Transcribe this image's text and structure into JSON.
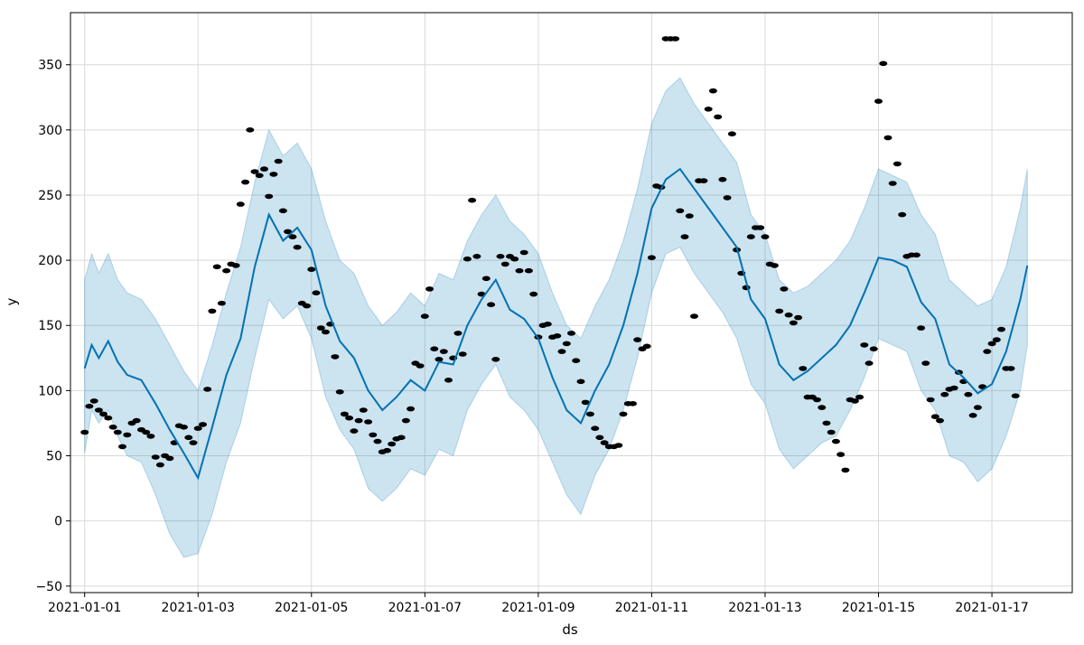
{
  "chart_data": {
    "type": "line",
    "title": "",
    "xlabel": "ds",
    "ylabel": "y",
    "xlim": [
      "2020-12-31T18:00",
      "2021-01-18T10:00"
    ],
    "ylim": [
      -55,
      390
    ],
    "grid": true,
    "x_tick_labels": [
      "2021-01-01",
      "2021-01-03",
      "2021-01-05",
      "2021-01-07",
      "2021-01-09",
      "2021-01-11",
      "2021-01-13",
      "2021-01-15",
      "2021-01-17"
    ],
    "y_tick_values": [
      -50,
      0,
      50,
      100,
      150,
      200,
      250,
      300,
      350
    ],
    "colors": {
      "forecast_line": "#0072b2",
      "uncertainty_band": "#0072b2",
      "observed_points": "#000000",
      "grid": "#d9d9d9"
    },
    "forecast": {
      "name": "yhat",
      "x": [
        "2021-01-01T00:00",
        "2021-01-01T03:00",
        "2021-01-01T06:00",
        "2021-01-01T10:00",
        "2021-01-01T14:00",
        "2021-01-01T18:00",
        "2021-01-02T00:00",
        "2021-01-02T06:00",
        "2021-01-02T12:00",
        "2021-01-02T18:00",
        "2021-01-03T00:00",
        "2021-01-03T06:00",
        "2021-01-03T12:00",
        "2021-01-03T18:00",
        "2021-01-04T00:00",
        "2021-01-04T06:00",
        "2021-01-04T12:00",
        "2021-01-04T18:00",
        "2021-01-05T00:00",
        "2021-01-05T06:00",
        "2021-01-05T12:00",
        "2021-01-05T18:00",
        "2021-01-06T00:00",
        "2021-01-06T06:00",
        "2021-01-06T12:00",
        "2021-01-06T18:00",
        "2021-01-07T00:00",
        "2021-01-07T06:00",
        "2021-01-07T12:00",
        "2021-01-07T18:00",
        "2021-01-08T00:00",
        "2021-01-08T06:00",
        "2021-01-08T12:00",
        "2021-01-08T18:00",
        "2021-01-09T00:00",
        "2021-01-09T06:00",
        "2021-01-09T12:00",
        "2021-01-09T18:00",
        "2021-01-10T00:00",
        "2021-01-10T06:00",
        "2021-01-10T12:00",
        "2021-01-10T18:00",
        "2021-01-11T00:00",
        "2021-01-11T06:00",
        "2021-01-11T12:00",
        "2021-01-11T18:00",
        "2021-01-12T00:00",
        "2021-01-12T06:00",
        "2021-01-12T12:00",
        "2021-01-12T18:00",
        "2021-01-13T00:00",
        "2021-01-13T06:00",
        "2021-01-13T12:00",
        "2021-01-13T18:00",
        "2021-01-14T00:00",
        "2021-01-14T06:00",
        "2021-01-14T12:00",
        "2021-01-14T18:00",
        "2021-01-15T00:00",
        "2021-01-15T06:00",
        "2021-01-15T12:00",
        "2021-01-15T18:00",
        "2021-01-16T00:00",
        "2021-01-16T06:00",
        "2021-01-16T12:00",
        "2021-01-16T18:00",
        "2021-01-17T00:00",
        "2021-01-17T06:00",
        "2021-01-17T12:00",
        "2021-01-17T15:00"
      ],
      "y": [
        117,
        135,
        125,
        138,
        122,
        112,
        108,
        90,
        70,
        52,
        33,
        72,
        112,
        140,
        195,
        235,
        215,
        225,
        208,
        165,
        138,
        125,
        100,
        85,
        95,
        108,
        100,
        122,
        120,
        150,
        170,
        185,
        162,
        155,
        140,
        110,
        85,
        75,
        100,
        120,
        150,
        190,
        240,
        262,
        270,
        255,
        240,
        225,
        210,
        170,
        155,
        120,
        108,
        115,
        125,
        135,
        150,
        175,
        202,
        200,
        195,
        168,
        155,
        120,
        110,
        98,
        105,
        130,
        170,
        196
      ],
      "lower": [
        52,
        85,
        75,
        85,
        65,
        50,
        45,
        20,
        -10,
        -28,
        -25,
        5,
        45,
        75,
        125,
        170,
        155,
        165,
        140,
        95,
        70,
        55,
        25,
        15,
        25,
        40,
        35,
        55,
        50,
        85,
        105,
        120,
        95,
        85,
        70,
        45,
        20,
        5,
        35,
        55,
        85,
        125,
        175,
        205,
        210,
        190,
        175,
        160,
        140,
        105,
        90,
        55,
        40,
        50,
        60,
        65,
        85,
        110,
        140,
        135,
        130,
        100,
        85,
        50,
        45,
        30,
        40,
        65,
        100,
        135
      ],
      "upper": [
        185,
        205,
        190,
        205,
        185,
        175,
        170,
        155,
        135,
        115,
        100,
        135,
        175,
        210,
        260,
        300,
        280,
        290,
        270,
        230,
        200,
        190,
        165,
        150,
        160,
        175,
        165,
        190,
        185,
        215,
        235,
        250,
        230,
        220,
        205,
        175,
        150,
        140,
        165,
        185,
        215,
        255,
        305,
        330,
        340,
        320,
        305,
        290,
        275,
        235,
        220,
        185,
        175,
        180,
        190,
        200,
        215,
        240,
        270,
        265,
        260,
        235,
        220,
        185,
        175,
        165,
        170,
        195,
        240,
        270
      ]
    },
    "observed": {
      "x": [
        "2021-01-01T00:00",
        "2021-01-01T02:00",
        "2021-01-01T04:00",
        "2021-01-01T06:00",
        "2021-01-01T08:00",
        "2021-01-01T10:00",
        "2021-01-01T12:00",
        "2021-01-01T14:00",
        "2021-01-01T16:00",
        "2021-01-01T18:00",
        "2021-01-01T20:00",
        "2021-01-01T22:00",
        "2021-01-02T00:00",
        "2021-01-02T02:00",
        "2021-01-02T04:00",
        "2021-01-02T06:00",
        "2021-01-02T08:00",
        "2021-01-02T10:00",
        "2021-01-02T12:00",
        "2021-01-02T14:00",
        "2021-01-02T16:00",
        "2021-01-02T18:00",
        "2021-01-02T20:00",
        "2021-01-02T22:00",
        "2021-01-03T00:00",
        "2021-01-03T02:00",
        "2021-01-03T04:00",
        "2021-01-03T06:00",
        "2021-01-03T08:00",
        "2021-01-03T10:00",
        "2021-01-03T12:00",
        "2021-01-03T14:00",
        "2021-01-03T16:00",
        "2021-01-03T18:00",
        "2021-01-03T20:00",
        "2021-01-03T22:00",
        "2021-01-04T00:00",
        "2021-01-04T02:00",
        "2021-01-04T04:00",
        "2021-01-04T06:00",
        "2021-01-04T08:00",
        "2021-01-04T10:00",
        "2021-01-04T12:00",
        "2021-01-04T14:00",
        "2021-01-04T16:00",
        "2021-01-04T18:00",
        "2021-01-04T20:00",
        "2021-01-04T22:00",
        "2021-01-05T00:00",
        "2021-01-05T02:00",
        "2021-01-05T04:00",
        "2021-01-05T06:00",
        "2021-01-05T08:00",
        "2021-01-05T10:00",
        "2021-01-05T12:00",
        "2021-01-05T14:00",
        "2021-01-05T16:00",
        "2021-01-05T18:00",
        "2021-01-05T20:00",
        "2021-01-05T22:00",
        "2021-01-06T00:00",
        "2021-01-06T02:00",
        "2021-01-06T04:00",
        "2021-01-06T06:00",
        "2021-01-06T08:00",
        "2021-01-06T10:00",
        "2021-01-06T12:00",
        "2021-01-06T14:00",
        "2021-01-06T16:00",
        "2021-01-06T18:00",
        "2021-01-06T20:00",
        "2021-01-06T22:00",
        "2021-01-07T00:00",
        "2021-01-07T02:00",
        "2021-01-07T04:00",
        "2021-01-07T06:00",
        "2021-01-07T08:00",
        "2021-01-07T10:00",
        "2021-01-07T12:00",
        "2021-01-07T14:00",
        "2021-01-07T16:00",
        "2021-01-07T18:00",
        "2021-01-07T20:00",
        "2021-01-07T22:00",
        "2021-01-08T00:00",
        "2021-01-08T02:00",
        "2021-01-08T04:00",
        "2021-01-08T06:00",
        "2021-01-08T08:00",
        "2021-01-08T10:00",
        "2021-01-08T12:00",
        "2021-01-08T14:00",
        "2021-01-08T16:00",
        "2021-01-08T18:00",
        "2021-01-08T20:00",
        "2021-01-08T22:00",
        "2021-01-09T00:00",
        "2021-01-09T02:00",
        "2021-01-09T04:00",
        "2021-01-09T06:00",
        "2021-01-09T08:00",
        "2021-01-09T10:00",
        "2021-01-09T12:00",
        "2021-01-09T14:00",
        "2021-01-09T16:00",
        "2021-01-09T18:00",
        "2021-01-09T20:00",
        "2021-01-09T22:00",
        "2021-01-10T00:00",
        "2021-01-10T02:00",
        "2021-01-10T04:00",
        "2021-01-10T06:00",
        "2021-01-10T08:00",
        "2021-01-10T10:00",
        "2021-01-10T12:00",
        "2021-01-10T14:00",
        "2021-01-10T16:00",
        "2021-01-10T18:00",
        "2021-01-10T20:00",
        "2021-01-10T22:00",
        "2021-01-11T00:00",
        "2021-01-11T02:00",
        "2021-01-11T04:00",
        "2021-01-11T06:00",
        "2021-01-11T08:00",
        "2021-01-11T10:00",
        "2021-01-11T12:00",
        "2021-01-11T14:00",
        "2021-01-11T16:00",
        "2021-01-11T18:00",
        "2021-01-11T20:00",
        "2021-01-11T22:00",
        "2021-01-12T00:00",
        "2021-01-12T02:00",
        "2021-01-12T04:00",
        "2021-01-12T06:00",
        "2021-01-12T08:00",
        "2021-01-12T10:00",
        "2021-01-12T12:00",
        "2021-01-12T14:00",
        "2021-01-12T16:00",
        "2021-01-12T18:00",
        "2021-01-12T20:00",
        "2021-01-12T22:00",
        "2021-01-13T00:00",
        "2021-01-13T02:00",
        "2021-01-13T04:00",
        "2021-01-13T06:00",
        "2021-01-13T08:00",
        "2021-01-13T10:00",
        "2021-01-13T12:00",
        "2021-01-13T14:00",
        "2021-01-13T16:00",
        "2021-01-13T18:00",
        "2021-01-13T20:00",
        "2021-01-13T22:00",
        "2021-01-14T00:00",
        "2021-01-14T02:00",
        "2021-01-14T04:00",
        "2021-01-14T06:00",
        "2021-01-14T08:00",
        "2021-01-14T10:00",
        "2021-01-14T12:00",
        "2021-01-14T14:00",
        "2021-01-14T16:00",
        "2021-01-14T18:00",
        "2021-01-14T20:00",
        "2021-01-14T22:00",
        "2021-01-15T00:00",
        "2021-01-15T02:00",
        "2021-01-15T04:00",
        "2021-01-15T06:00",
        "2021-01-15T08:00",
        "2021-01-15T10:00",
        "2021-01-15T12:00",
        "2021-01-15T14:00",
        "2021-01-15T16:00",
        "2021-01-15T18:00",
        "2021-01-15T20:00",
        "2021-01-15T22:00",
        "2021-01-16T00:00",
        "2021-01-16T02:00",
        "2021-01-16T04:00",
        "2021-01-16T06:00",
        "2021-01-16T08:00",
        "2021-01-16T10:00",
        "2021-01-16T12:00",
        "2021-01-16T14:00",
        "2021-01-16T16:00",
        "2021-01-16T18:00",
        "2021-01-16T20:00",
        "2021-01-16T22:00",
        "2021-01-17T00:00",
        "2021-01-17T02:00",
        "2021-01-17T04:00",
        "2021-01-17T06:00",
        "2021-01-17T08:00",
        "2021-01-17T10:00"
      ],
      "y": [
        68,
        88,
        92,
        85,
        82,
        79,
        72,
        68,
        57,
        66,
        75,
        77,
        70,
        68,
        65,
        49,
        43,
        50,
        48,
        60,
        73,
        72,
        64,
        60,
        71,
        74,
        101,
        161,
        195,
        167,
        192,
        197,
        196,
        243,
        260,
        300,
        268,
        265,
        270,
        249,
        266,
        276,
        238,
        222,
        218,
        210,
        167,
        165,
        193,
        175,
        148,
        145,
        151,
        126,
        99,
        82,
        79,
        69,
        77,
        85,
        76,
        66,
        61,
        53,
        54,
        59,
        63,
        64,
        77,
        86,
        121,
        119,
        157,
        178,
        132,
        124,
        130,
        108,
        125,
        144,
        128,
        201,
        246,
        203,
        174,
        186,
        166,
        124,
        203,
        197,
        203,
        201,
        192,
        206,
        192,
        174,
        141,
        150,
        151,
        141,
        142,
        130,
        136,
        144,
        123,
        107,
        91,
        82,
        71,
        64,
        60,
        57,
        57,
        58,
        82,
        90,
        90,
        139,
        132,
        134,
        202,
        257,
        256,
        370,
        370,
        370,
        238,
        218,
        234,
        157,
        261,
        261,
        316,
        330,
        310,
        262,
        248,
        297,
        208,
        190,
        179,
        218,
        225,
        225,
        218,
        197,
        196,
        161,
        178,
        158,
        152,
        156,
        117,
        95,
        95,
        93,
        87,
        75,
        68,
        61,
        51,
        39,
        93,
        92,
        95,
        135,
        121,
        132,
        322,
        351,
        294,
        259,
        274,
        235,
        203,
        204,
        204,
        148,
        121,
        93,
        80,
        77,
        97,
        101,
        102,
        114,
        107,
        97,
        81,
        87,
        103,
        130,
        136,
        139,
        147,
        117,
        117,
        96
      ]
    }
  }
}
